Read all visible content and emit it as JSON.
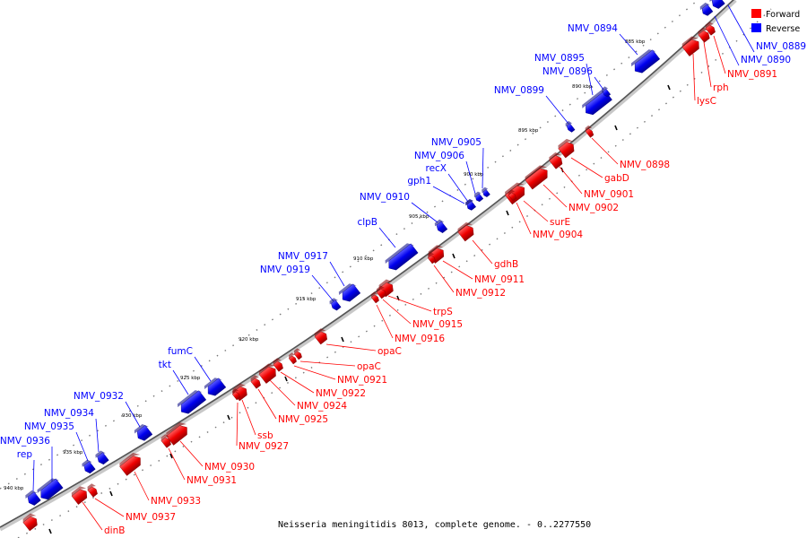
{
  "caption": "Neisseria meningitidis 8013, complete genome. - 0..2277550",
  "legend": [
    {
      "label": "Forward",
      "color": "#ff0000"
    },
    {
      "label": "Reverse",
      "color": "#0000ff"
    }
  ],
  "colors": {
    "forward": "#ff0000",
    "reverse": "#0000ff",
    "backbone": "#555555",
    "tick": "#000000"
  },
  "ticks": [
    "885 kbp",
    "890 kbp",
    "895 kbp",
    "900 kbp",
    "905 kbp",
    "910 kbp",
    "915 kbp",
    "920 kbp",
    "925 kbp",
    "930 kbp",
    "935 kbp",
    "940 kbp"
  ],
  "reverse_genes": [
    "NMV_0894",
    "NMV_0895",
    "NMV_0896",
    "NMV_0899",
    "NMV_0905",
    "NMV_0906",
    "recX",
    "gph1",
    "NMV_0910",
    "clpB",
    "NMV_0917",
    "NMV_0919",
    "fumC",
    "tkt",
    "NMV_0932",
    "NMV_0934",
    "NMV_0935",
    "NMV_0936",
    "rep",
    "NMV_0889",
    "NMV_0890"
  ],
  "forward_genes": [
    "NMV_0891",
    "rph",
    "lysC",
    "NMV_0898",
    "gabD",
    "NMV_0901",
    "NMV_0902",
    "surE",
    "NMV_0904",
    "gdhB",
    "NMV_0911",
    "NMV_0912",
    "trpS",
    "NMV_0915",
    "NMV_0916",
    "opaC",
    "opaC",
    "NMV_0921",
    "NMV_0922",
    "NMV_0924",
    "NMV_0925",
    "ssb",
    "NMV_0927",
    "NMV_0930",
    "NMV_0931",
    "NMV_0933",
    "NMV_0937",
    "dinB"
  ]
}
